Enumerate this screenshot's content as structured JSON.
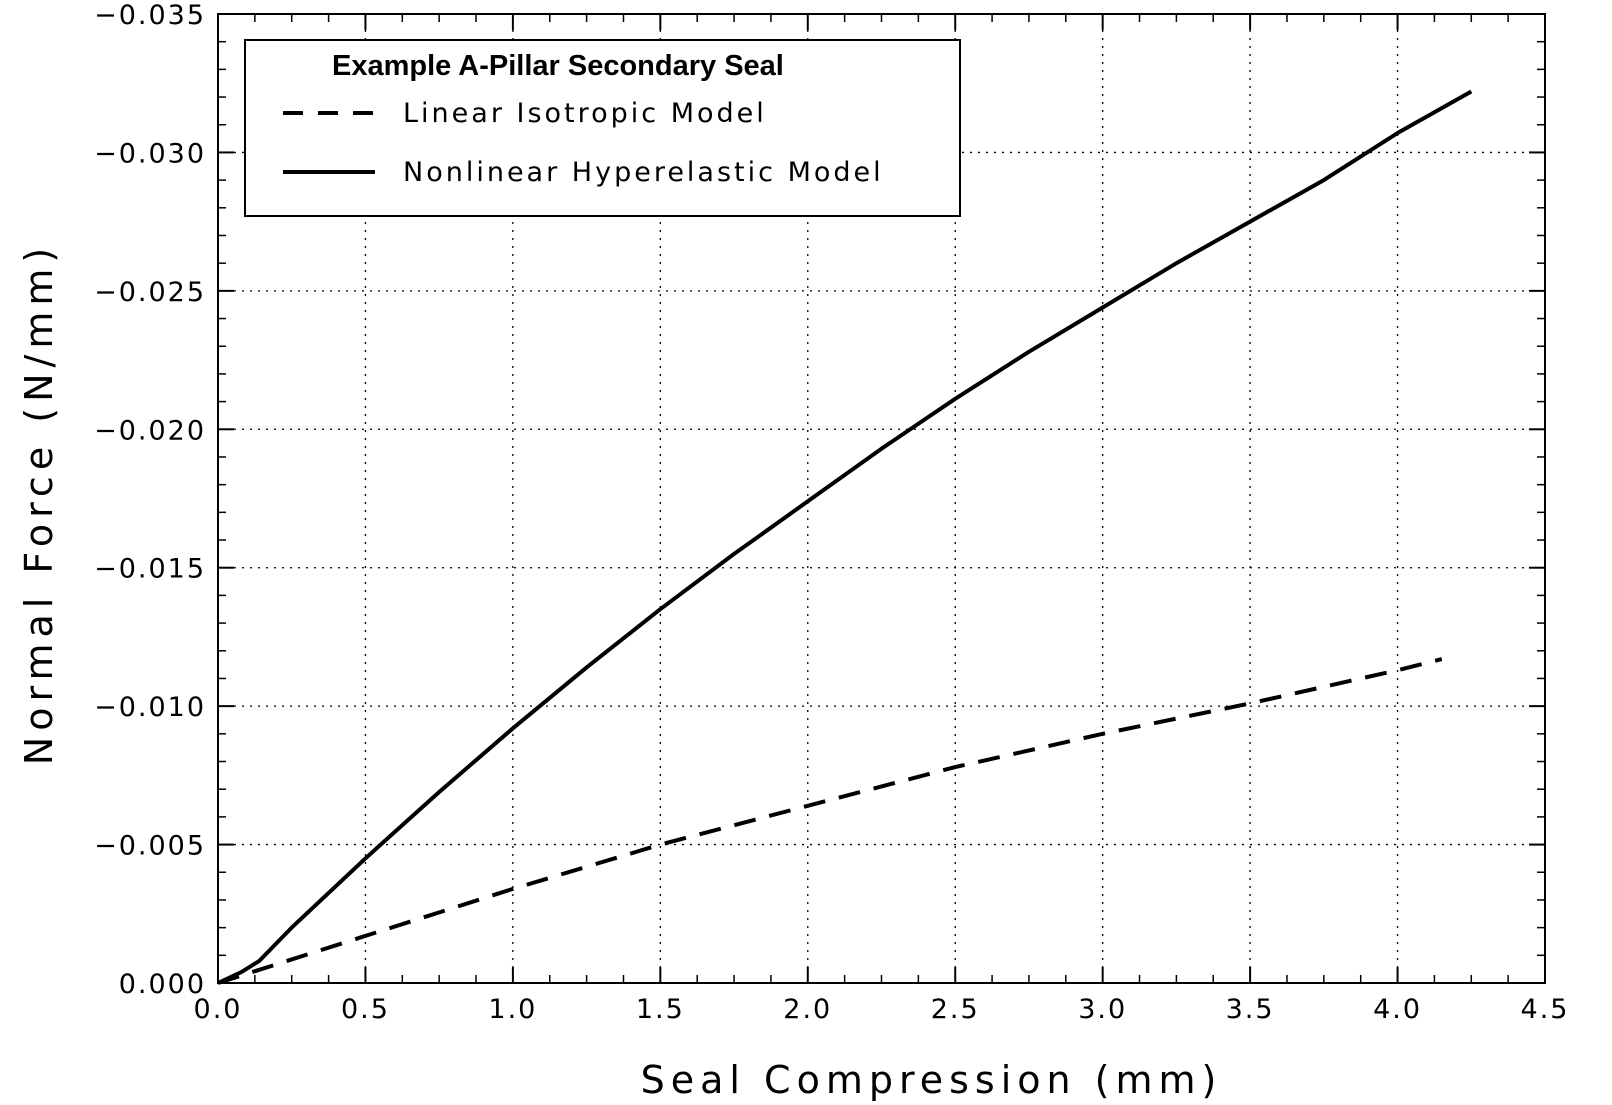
{
  "chart_data": {
    "type": "line",
    "title": "Example A-Pillar Secondary Seal",
    "xlabel": "Seal Compression (mm)",
    "ylabel": "Normal Force (N/mm)",
    "xlim": [
      0.0,
      4.5
    ],
    "ylim": [
      0.0,
      -0.035
    ],
    "x_major_ticks": [
      0.0,
      0.5,
      1.0,
      1.5,
      2.0,
      2.5,
      3.0,
      3.5,
      4.0,
      4.5
    ],
    "x_tick_labels": [
      "0.0",
      "0.5",
      "1.0",
      "1.5",
      "2.0",
      "2.5",
      "3.0",
      "3.5",
      "4.0",
      "4.5"
    ],
    "y_major_ticks": [
      0.0,
      -0.005,
      -0.01,
      -0.015,
      -0.02,
      -0.025,
      -0.03,
      -0.035
    ],
    "y_tick_labels": [
      "0.000",
      "−0.005",
      "−0.010",
      "−0.015",
      "−0.020",
      "−0.025",
      "−0.030",
      "−0.035"
    ],
    "grid": true,
    "legend_position": "top-left",
    "series": [
      {
        "name": "Linear Isotropic Model",
        "style": "dashed",
        "color": "#000000",
        "x": [
          0.0,
          0.5,
          1.0,
          1.5,
          2.0,
          2.5,
          3.0,
          3.5,
          4.0,
          4.15
        ],
        "y": [
          0.0,
          -0.0017,
          -0.0034,
          -0.005,
          -0.0064,
          -0.0078,
          -0.009,
          -0.0101,
          -0.0113,
          -0.0117
        ]
      },
      {
        "name": "Nonlinear Hyperelastic Model",
        "style": "solid",
        "color": "#000000",
        "x": [
          0.0,
          0.08,
          0.14,
          0.25,
          0.5,
          0.75,
          1.0,
          1.25,
          1.5,
          1.75,
          2.0,
          2.25,
          2.5,
          2.75,
          3.0,
          3.25,
          3.5,
          3.75,
          4.0,
          4.25
        ],
        "y": [
          0.0,
          -0.0004,
          -0.0008,
          -0.002,
          -0.0045,
          -0.0069,
          -0.0092,
          -0.0114,
          -0.0135,
          -0.0155,
          -0.0174,
          -0.0193,
          -0.0211,
          -0.0228,
          -0.0244,
          -0.026,
          -0.0275,
          -0.029,
          -0.0307,
          -0.0322
        ]
      }
    ]
  }
}
